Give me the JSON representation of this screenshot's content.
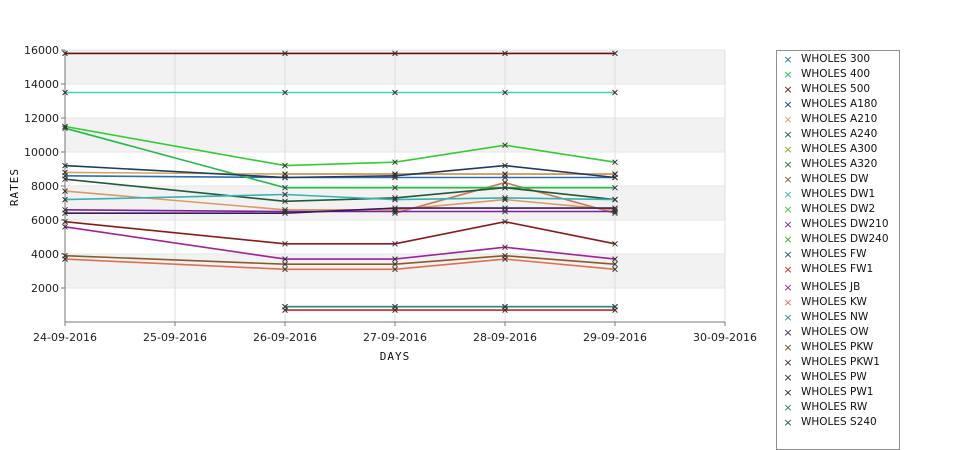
{
  "chart_data": {
    "type": "line",
    "xlabel": "DAYS",
    "ylabel": "RATES",
    "x_ticks": [
      "24-09-2016",
      "25-09-2016",
      "26-09-2016",
      "27-09-2016",
      "28-09-2016",
      "29-09-2016",
      "30-09-2016"
    ],
    "y_ticks": [
      "2000",
      "4000",
      "6000",
      "8000",
      "10000",
      "12000",
      "14000",
      "16000"
    ],
    "xlim": [
      "24-09-2016",
      "30-09-2016"
    ],
    "ylim": [
      0,
      16000
    ],
    "grid": "horizontal bands",
    "legend_position": "right",
    "x": [
      "24-09-2016",
      "26-09-2016",
      "27-09-2016",
      "28-09-2016",
      "29-09-2016"
    ],
    "series": [
      {
        "name": "WHOLES 300",
        "color": "#2a6fb0",
        "values": [
          8600,
          8500,
          8500,
          8500,
          8500
        ]
      },
      {
        "name": "WHOLES 400",
        "color": "#22bb44",
        "values": [
          11400,
          7900,
          7900,
          7900,
          7900
        ]
      },
      {
        "name": "WHOLES 500",
        "color": "#6b1010",
        "values": [
          15800,
          15800,
          15800,
          15800,
          15800
        ]
      },
      {
        "name": "WHOLES A180",
        "color": "#1b3d66",
        "values": [
          9200,
          8500,
          8600,
          9200,
          8500
        ]
      },
      {
        "name": "WHOLES A210",
        "color": "#d99a66",
        "values": [
          7700,
          6600,
          6600,
          7200,
          6600
        ]
      },
      {
        "name": "WHOLES A240",
        "color": "#1f5a3a",
        "values": [
          8400,
          7100,
          7300,
          7900,
          7200
        ]
      },
      {
        "name": "WHOLES A300",
        "color": "#88aa11",
        "values": [
          null,
          null,
          null,
          null,
          null
        ]
      },
      {
        "name": "WHOLES A320",
        "color": "#336633",
        "values": [
          null,
          null,
          null,
          null,
          null
        ]
      },
      {
        "name": "WHOLES DW",
        "color": "#8b5a2b",
        "values": [
          3900,
          3400,
          3400,
          3900,
          3400
        ]
      },
      {
        "name": "WHOLES DW1",
        "color": "#3ab0b0",
        "values": [
          7200,
          7500,
          7200,
          7300,
          7200
        ]
      },
      {
        "name": "WHOLES DW2",
        "color": "#33cc33",
        "values": [
          11500,
          9200,
          9400,
          10400,
          9400
        ]
      },
      {
        "name": "WHOLES DW210",
        "color": "#7a1fa0",
        "values": [
          6600,
          6500,
          6500,
          6500,
          6500
        ]
      },
      {
        "name": "WHOLES DW240",
        "color": "#44aa11",
        "values": [
          null,
          null,
          null,
          null,
          null
        ]
      },
      {
        "name": "WHOLES FW",
        "color": "#1a4f8a",
        "values": [
          null,
          null,
          null,
          null,
          null
        ]
      },
      {
        "name": "WHOLES FW1",
        "color": "#c62828",
        "values": [
          null,
          700,
          700,
          700,
          700
        ]
      },
      {
        "name": "WHOLES JB",
        "color": "#a020a0",
        "values": [
          5600,
          3700,
          3700,
          4400,
          3700
        ]
      },
      {
        "name": "WHOLES KW",
        "color": "#e07050",
        "values": [
          3700,
          3100,
          3100,
          3700,
          3100
        ]
      },
      {
        "name": "WHOLES NW",
        "color": "#2a8a8a",
        "values": [
          null,
          900,
          900,
          900,
          900
        ]
      },
      {
        "name": "WHOLES OW",
        "color": "#3a1a5a",
        "values": [
          6400,
          6400,
          6700,
          6700,
          6700
        ]
      },
      {
        "name": "WHOLES PKW",
        "color": "#6a4a2a",
        "values": [
          null,
          null,
          null,
          null,
          null
        ]
      },
      {
        "name": "WHOLES PKW1",
        "color": "#4a1a3a",
        "values": [
          null,
          null,
          null,
          null,
          null
        ]
      },
      {
        "name": "WHOLES PW",
        "color": "#1a2a4a",
        "values": [
          null,
          null,
          null,
          null,
          null
        ]
      },
      {
        "name": "WHOLES PW1",
        "color": "#2a2a2a",
        "values": [
          null,
          null,
          null,
          null,
          null
        ]
      },
      {
        "name": "WHOLES RW",
        "color": "#2a7a6a",
        "values": [
          null,
          null,
          null,
          null,
          null
        ]
      },
      {
        "name": "WHOLES S240",
        "color": "#1a5a4a",
        "values": [
          null,
          null,
          null,
          null,
          null
        ]
      }
    ],
    "extra_lines": [
      {
        "color": "#40d0c0",
        "values": [
          13500,
          13500,
          13500,
          13500,
          13500
        ]
      },
      {
        "color": "#8a1a1a",
        "values": [
          5900,
          4600,
          4600,
          5900,
          4600
        ]
      },
      {
        "color": "#b86a2a",
        "values": [
          null,
          8700,
          8700,
          8700,
          8700
        ]
      },
      {
        "color": "#cc7755",
        "values": [
          null,
          null,
          6400,
          8200,
          6400
        ]
      },
      {
        "color": "#d9a25a",
        "values": [
          8800,
          8700,
          8700,
          8700,
          8700
        ]
      },
      {
        "color": "#40c8c0",
        "values": [
          null,
          900,
          900,
          900,
          900
        ]
      }
    ]
  }
}
